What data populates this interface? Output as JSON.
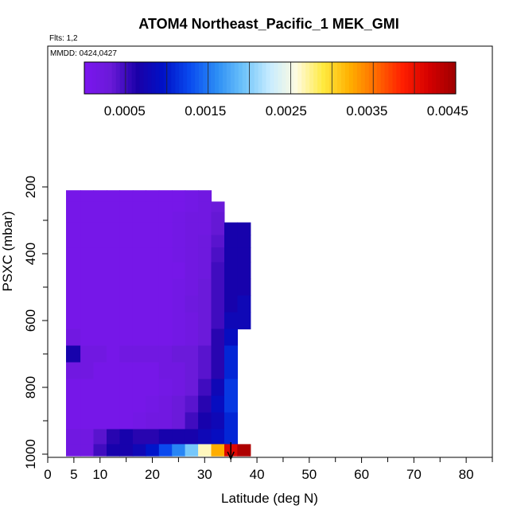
{
  "chart_data": {
    "type": "heatmap",
    "title": "ATOM4 Northeast_Pacific_1 MEK_GMI",
    "annotations": {
      "flights": "Flts: 1,2",
      "dates": "MMDD: 0424,0427"
    },
    "xlabel": "Latitude (deg N)",
    "ylabel": "PSXC (mbar)",
    "xlim": [
      0,
      85
    ],
    "ylim": [
      1000,
      0
    ],
    "x_ticks": [
      "0",
      "5",
      "10",
      "20",
      "30",
      "40",
      "50",
      "60",
      "70",
      "80"
    ],
    "x_tick_values": [
      0,
      5,
      10,
      20,
      30,
      40,
      50,
      60,
      70,
      80
    ],
    "y_ticks": [
      "200",
      "400",
      "600",
      "800",
      "1000"
    ],
    "y_tick_values": [
      200,
      400,
      600,
      800,
      1000
    ],
    "colorbar": {
      "range": [
        0,
        0.0046
      ],
      "tick_labels": [
        "0.0005",
        "0.0015",
        "0.0025",
        "0.0035",
        "0.0045"
      ],
      "tick_values": [
        0.0005,
        0.0015,
        0.0025,
        0.0035,
        0.0045
      ],
      "palette": [
        "#7b16ef",
        "#6a1ad8",
        "#1a00a8",
        "#0012c8",
        "#0a4cf0",
        "#2c8ef5",
        "#6ec3fa",
        "#c8ecff",
        "#fffbe0",
        "#ffea40",
        "#ffb000",
        "#ff6a00",
        "#ff1e00",
        "#d40000",
        "#9e0000"
      ]
    },
    "marker": {
      "latitude": 35,
      "label": "arrow"
    },
    "latitude_bins": [
      5,
      7.5,
      10,
      12.5,
      15,
      17.5,
      20,
      22.5,
      25,
      27.5,
      30,
      32.5,
      35,
      37.5,
      40
    ],
    "pressure_levels": [
      225,
      262.5,
      287.5,
      325,
      362.5,
      400,
      450,
      500,
      550,
      600,
      650,
      700,
      750,
      800,
      850,
      900,
      950,
      990
    ],
    "values": [
      [
        0.0001,
        0.0001,
        0.0001,
        0.0001,
        0.0001,
        0.0001,
        0.0001,
        0.0001,
        0.0001,
        0.00015,
        0.0002,
        null,
        null,
        null,
        null
      ],
      [
        0.0001,
        0.0001,
        0.0001,
        0.0001,
        0.0001,
        0.0001,
        0.0001,
        0.0001,
        0.0001,
        0.00015,
        0.0002,
        0.0003,
        null,
        null,
        null
      ],
      [
        0.0001,
        0.0001,
        0.0001,
        0.0001,
        0.0001,
        0.0001,
        0.0001,
        0.0001,
        0.00015,
        0.0002,
        0.0002,
        0.00035,
        null,
        null,
        null
      ],
      [
        0.0001,
        0.0001,
        0.0001,
        0.0001,
        0.0001,
        0.0001,
        0.0001,
        0.0001,
        0.00015,
        0.0002,
        0.0002,
        0.00035,
        0.0007,
        0.0007,
        null
      ],
      [
        0.0001,
        0.0001,
        0.0001,
        0.0001,
        0.0001,
        0.0001,
        0.0001,
        0.0001,
        0.00015,
        0.0002,
        0.00025,
        0.0004,
        0.0007,
        0.0007,
        null
      ],
      [
        0.0001,
        0.0001,
        0.0001,
        0.0001,
        0.0001,
        0.0001,
        0.0001,
        0.0001,
        0.00015,
        0.0002,
        0.00025,
        0.00045,
        0.0007,
        0.0007,
        null
      ],
      [
        0.0001,
        0.0001,
        0.0001,
        0.0001,
        0.0001,
        0.0001,
        0.0001,
        0.0001,
        0.0001,
        0.0002,
        0.00025,
        0.0005,
        0.0007,
        0.0007,
        null
      ],
      [
        0.0001,
        0.0001,
        0.0001,
        0.0001,
        0.0001,
        0.0001,
        0.0001,
        0.0001,
        0.00015,
        0.0002,
        0.0003,
        0.0005,
        0.0007,
        0.0007,
        null
      ],
      [
        0.0001,
        0.0001,
        0.0001,
        0.0001,
        0.0001,
        0.0001,
        0.0001,
        0.0001,
        0.00015,
        0.00025,
        0.0003,
        0.0005,
        0.0007,
        0.0008,
        null
      ],
      [
        0.0001,
        0.0001,
        0.0001,
        0.0001,
        0.0001,
        0.0001,
        0.0001,
        0.0001,
        0.00015,
        0.0002,
        0.0003,
        0.0005,
        0.0008,
        0.0008,
        null
      ],
      [
        0.0002,
        0.0001,
        0.0001,
        0.0001,
        0.0001,
        0.0001,
        0.0001,
        0.0001,
        0.00015,
        0.0002,
        0.0003,
        0.0006,
        0.0009,
        null,
        null
      ],
      [
        0.0007,
        0.0002,
        0.0002,
        0.0001,
        0.0002,
        0.0002,
        0.0002,
        0.0002,
        0.0003,
        0.0003,
        0.0004,
        0.0006,
        0.0011,
        null,
        null
      ],
      [
        0.0002,
        0.0002,
        0.0001,
        0.0001,
        0.0001,
        0.0001,
        0.0001,
        0.0002,
        0.0002,
        0.0003,
        0.0004,
        0.0006,
        0.0011,
        null,
        null
      ],
      [
        0.0001,
        0.0001,
        0.0001,
        0.0001,
        0.0001,
        0.0001,
        0.0001,
        0.00015,
        0.0002,
        0.0003,
        0.0005,
        0.0008,
        0.0012,
        null,
        null
      ],
      [
        0.0001,
        0.0001,
        0.0001,
        0.0001,
        0.0001,
        0.0001,
        0.00015,
        0.0002,
        0.0003,
        0.0004,
        0.0006,
        0.0009,
        0.0012,
        null,
        null
      ],
      [
        0.0001,
        0.0001,
        0.0001,
        0.0001,
        0.0001,
        0.00015,
        0.0002,
        0.0002,
        0.0003,
        0.0005,
        0.0007,
        0.0008,
        0.0011,
        null,
        null
      ],
      [
        0.0002,
        0.0002,
        0.0004,
        0.0006,
        0.0007,
        0.0006,
        0.0006,
        0.0007,
        0.0007,
        0.0007,
        0.0008,
        0.0009,
        0.0011,
        null,
        null
      ],
      [
        0.0002,
        0.0002,
        0.0005,
        0.0007,
        0.0007,
        0.0008,
        0.001,
        0.0013,
        0.0016,
        0.002,
        0.0027,
        0.0033,
        0.0042,
        0.0045,
        null
      ]
    ]
  }
}
